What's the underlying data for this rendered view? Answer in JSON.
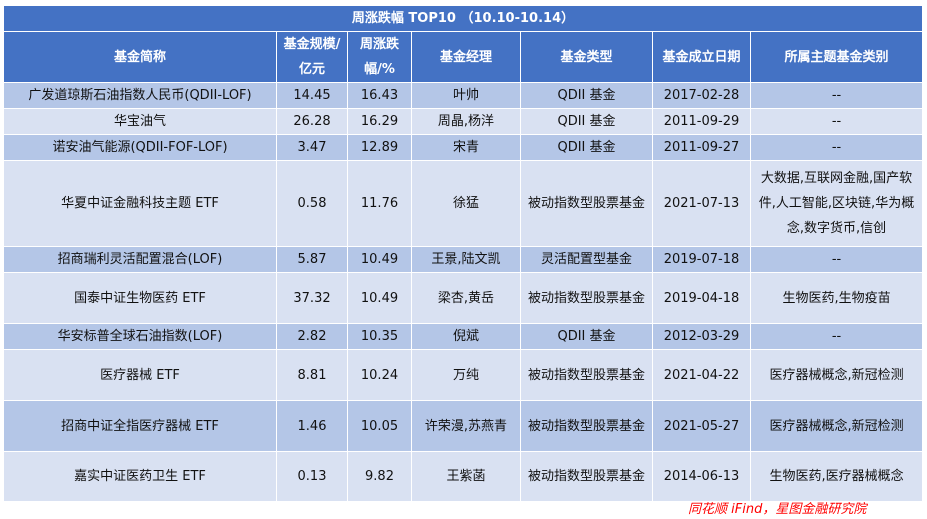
{
  "title": "周涨跌幅 TOP10 （10.10-10.14）",
  "headers": [
    "基金简称",
    "基金规模/亿元",
    "周涨跌幅/%",
    "基金经理",
    "基金类型",
    "基金成立日期",
    "所属主题基金类别"
  ],
  "rows": [
    {
      "name": "广发道琼斯石油指数人民币(QDII-LOF)",
      "scale": "14.45",
      "change": "16.43",
      "manager": "叶帅",
      "type": "QDII 基金",
      "date": "2017-02-28",
      "theme": "--"
    },
    {
      "name": "华宝油气",
      "scale": "26.28",
      "change": "16.29",
      "manager": "周晶,杨洋",
      "type": "QDII 基金",
      "date": "2011-09-29",
      "theme": "--"
    },
    {
      "name": "诺安油气能源(QDII-FOF-LOF)",
      "scale": "3.47",
      "change": "12.89",
      "manager": "宋青",
      "type": "QDII 基金",
      "date": "2011-09-27",
      "theme": "--"
    },
    {
      "name": "华夏中证金融科技主题 ETF",
      "scale": "0.58",
      "change": "11.76",
      "manager": "徐猛",
      "type": "被动指数型股票基金",
      "date": "2021-07-13",
      "theme": "大数据,互联网金融,国产软件,人工智能,区块链,华为概念,数字货币,信创"
    },
    {
      "name": "招商瑞利灵活配置混合(LOF)",
      "scale": "5.87",
      "change": "10.49",
      "manager": "王景,陆文凯",
      "type": "灵活配置型基金",
      "date": "2019-07-18",
      "theme": "--"
    },
    {
      "name": "国泰中证生物医药 ETF",
      "scale": "37.32",
      "change": "10.49",
      "manager": "梁杏,黄岳",
      "type": "被动指数型股票基金",
      "date": "2019-04-18",
      "theme": "生物医药,生物疫苗"
    },
    {
      "name": "华安标普全球石油指数(LOF)",
      "scale": "2.82",
      "change": "10.35",
      "manager": "倪斌",
      "type": "QDII 基金",
      "date": "2012-03-29",
      "theme": "--"
    },
    {
      "name": "医疗器械 ETF",
      "scale": "8.81",
      "change": "10.24",
      "manager": "万纯",
      "type": "被动指数型股票基金",
      "date": "2021-04-22",
      "theme": "医疗器械概念,新冠检测"
    },
    {
      "name": "招商中证全指医疗器械 ETF",
      "scale": "1.46",
      "change": "10.05",
      "manager": "许荣漫,苏燕青",
      "type": "被动指数型股票基金",
      "date": "2021-05-27",
      "theme": "医疗器械概念,新冠检测"
    },
    {
      "name": "嘉实中证医药卫生 ETF",
      "scale": "0.13",
      "change": "9.82",
      "manager": "王紫菡",
      "type": "被动指数型股票基金",
      "date": "2014-06-13",
      "theme": "生物医药,医疗器械概念"
    }
  ],
  "source": "同花顺 iFind，星图金融研究院",
  "colors": {
    "header": "#4472C4",
    "row_dark": "#B4C6E7",
    "row_light": "#D9E1F2",
    "source": "#FF0000"
  }
}
